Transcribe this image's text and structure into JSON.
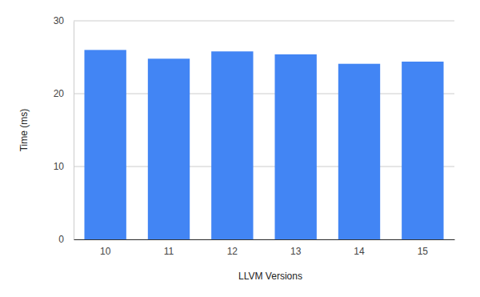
{
  "chart_data": {
    "type": "bar",
    "x_label": "LLVM Versions",
    "y_label": "Time (ms)",
    "categories": [
      "10",
      "11",
      "12",
      "13",
      "14",
      "15"
    ],
    "values": [
      26.0,
      24.8,
      25.8,
      25.4,
      24.1,
      24.4
    ],
    "color": "#4285f4",
    "ylim": [
      0,
      30
    ],
    "yticks": [
      0,
      10,
      20,
      30
    ],
    "grid": true
  }
}
